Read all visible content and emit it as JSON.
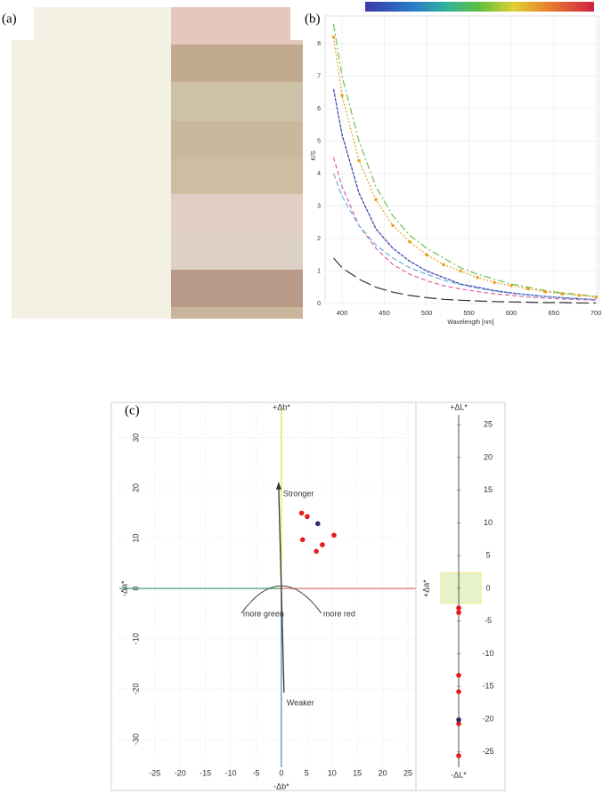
{
  "panels": [
    "(a)",
    "(b)",
    "(c)"
  ],
  "chart_data": [
    {
      "type": "line",
      "xlabel": "Wavelength [nm]",
      "ylabel": "K/S",
      "x": [
        390,
        400,
        420,
        440,
        460,
        480,
        500,
        520,
        540,
        560,
        580,
        600,
        620,
        640,
        660,
        680,
        700
      ],
      "xlim": [
        380,
        703
      ],
      "ylim": [
        0,
        8.7
      ],
      "xticks": [
        400,
        450,
        500,
        550,
        600,
        650,
        700
      ],
      "yticks": [
        0,
        1,
        2,
        3,
        4,
        5,
        6,
        7,
        8
      ],
      "grid": true,
      "series": [
        {
          "color": "#6cc04a",
          "values": [
            8.6,
            7.0,
            5.0,
            3.6,
            2.7,
            2.1,
            1.7,
            1.4,
            1.1,
            0.9,
            0.75,
            0.6,
            0.5,
            0.4,
            0.33,
            0.28,
            0.22
          ]
        },
        {
          "color": "#e8a020",
          "values": [
            8.2,
            6.4,
            4.4,
            3.2,
            2.4,
            1.9,
            1.5,
            1.2,
            1.0,
            0.8,
            0.65,
            0.55,
            0.45,
            0.36,
            0.3,
            0.25,
            0.2
          ]
        },
        {
          "color": "#3a3ab0",
          "values": [
            6.6,
            5.2,
            3.4,
            2.3,
            1.7,
            1.3,
            1.0,
            0.8,
            0.6,
            0.5,
            0.4,
            0.33,
            0.27,
            0.22,
            0.18,
            0.15,
            0.12
          ]
        },
        {
          "color": "#e0609a",
          "values": [
            4.5,
            3.6,
            2.4,
            1.7,
            1.2,
            0.9,
            0.7,
            0.55,
            0.45,
            0.37,
            0.3,
            0.25,
            0.2,
            0.17,
            0.14,
            0.12,
            0.1
          ]
        },
        {
          "color": "#6ab0e0",
          "values": [
            4.0,
            3.3,
            2.4,
            1.8,
            1.4,
            1.1,
            0.9,
            0.72,
            0.58,
            0.47,
            0.38,
            0.31,
            0.26,
            0.21,
            0.17,
            0.14,
            0.12
          ]
        },
        {
          "color": "#333333",
          "values": [
            1.4,
            1.1,
            0.75,
            0.5,
            0.35,
            0.25,
            0.18,
            0.13,
            0.1,
            0.08,
            0.06,
            0.05,
            0.04,
            0.03,
            0.03,
            0.02,
            0.02
          ]
        }
      ]
    },
    {
      "type": "scatter",
      "axis_labels": {
        "top": "+Δb*",
        "bottom": "-Δb*",
        "left": "-Δa*",
        "right": "+Δa*"
      },
      "annotations": [
        "Stronger",
        "Weaker",
        "more green",
        "more red"
      ],
      "xlim": [
        -32,
        26.5
      ],
      "ylim": [
        -38.5,
        36.5
      ],
      "xticks": [
        -25,
        -20,
        -15,
        -10,
        -5,
        0,
        5,
        10,
        15,
        20,
        25
      ],
      "yticks": [
        -30,
        -20,
        -10,
        0,
        10,
        20,
        30
      ],
      "grid": true,
      "series": [
        {
          "color": "#e8191a",
          "x": [
            4.0,
            5.1,
            4.2,
            10.4,
            8.1,
            6.9
          ],
          "values": [
            15.0,
            14.3,
            9.7,
            10.6,
            8.7,
            7.4
          ]
        },
        {
          "color": "#2b2b6e",
          "x": [
            7.2
          ],
          "values": [
            12.9
          ]
        }
      ]
    },
    {
      "type": "strip",
      "axis_labels": {
        "top": "+ΔL*",
        "bottom": "-ΔL*"
      },
      "ylim": [
        -27.5,
        27
      ],
      "yticks": [
        -25,
        -20,
        -15,
        -10,
        -5,
        0,
        5,
        10,
        15,
        20,
        25
      ],
      "tolerance_band": [
        -2.3,
        2.4
      ],
      "series": [
        {
          "color": "#e8191a",
          "values": [
            -3.0,
            -3.7,
            -13.3,
            -15.8,
            -20.7,
            -25.6
          ]
        },
        {
          "color": "#2b2b6e",
          "values": [
            -20.1
          ]
        }
      ]
    }
  ]
}
